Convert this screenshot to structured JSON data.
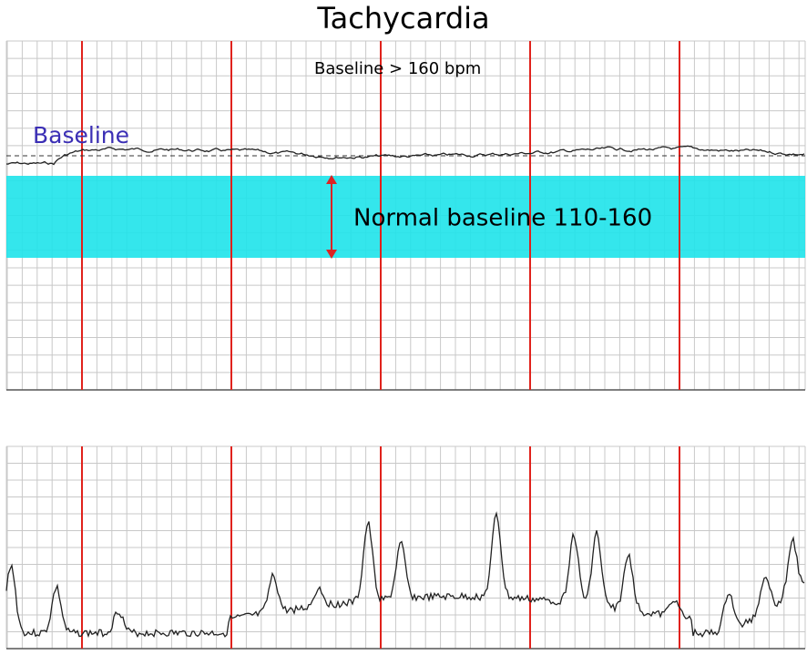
{
  "title": "Tachycardia",
  "top_panel": {
    "annotation": "Baseline > 160 bpm",
    "baseline_label": "Baseline",
    "band_label": "Normal baseline 110-160"
  }
}
